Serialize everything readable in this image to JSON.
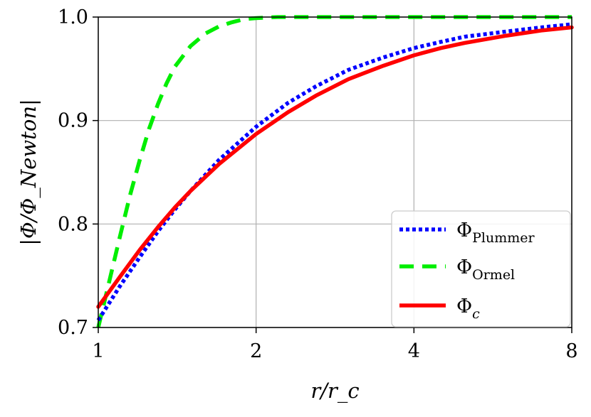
{
  "chart_data": {
    "type": "line",
    "title": "",
    "xlabel": "r/r_c",
    "ylabel": "|Φ/Φ_Newton|",
    "xscale": "log",
    "xlim": [
      1,
      8
    ],
    "ylim": [
      0.7,
      1.0
    ],
    "grid": true,
    "legend_placement": "bottom-right",
    "x_ticks": [
      {
        "value": 1,
        "label": "1"
      },
      {
        "value": 2,
        "label": "2"
      },
      {
        "value": 4,
        "label": "4"
      },
      {
        "value": 8,
        "label": "8"
      }
    ],
    "y_ticks": [
      {
        "value": 0.7,
        "label": "0.7"
      },
      {
        "value": 0.8,
        "label": "0.8"
      },
      {
        "value": 0.9,
        "label": "0.9"
      },
      {
        "value": 1.0,
        "label": "1.0"
      }
    ],
    "series": [
      {
        "name": "Φ_Plummer",
        "name_main": "Φ",
        "name_sub": "Plummer",
        "color": "#0000ff",
        "style": "dotted",
        "x": [
          1.0,
          1.1,
          1.2,
          1.3,
          1.4,
          1.5,
          1.7,
          2.0,
          2.3,
          2.6,
          3.0,
          3.5,
          4.0,
          4.5,
          5.0,
          6.0,
          7.0,
          8.0
        ],
        "y": [
          0.707,
          0.74,
          0.768,
          0.793,
          0.814,
          0.832,
          0.862,
          0.894,
          0.917,
          0.933,
          0.949,
          0.961,
          0.97,
          0.976,
          0.981,
          0.986,
          0.99,
          0.993
        ]
      },
      {
        "name": "Φ_Ormel",
        "name_main": "Φ",
        "name_sub": "Ormel",
        "color": "#00ee00",
        "style": "dashed",
        "x": [
          1.0,
          1.05,
          1.1,
          1.15,
          1.2,
          1.25,
          1.3,
          1.35,
          1.4,
          1.5,
          1.6,
          1.7,
          1.8,
          1.9,
          2.0,
          2.2,
          2.5,
          3.0,
          4.0,
          6.0,
          8.0
        ],
        "y": [
          0.7,
          0.745,
          0.788,
          0.828,
          0.862,
          0.892,
          0.916,
          0.936,
          0.952,
          0.972,
          0.984,
          0.991,
          0.995,
          0.998,
          0.999,
          1.0,
          1.0,
          1.0,
          1.0,
          1.0,
          1.0
        ]
      },
      {
        "name": "Φ_c",
        "name_main": "Φ",
        "name_sub": "c",
        "color": "#ff0000",
        "style": "solid",
        "x": [
          1.0,
          1.1,
          1.2,
          1.3,
          1.4,
          1.5,
          1.7,
          2.0,
          2.3,
          2.6,
          3.0,
          3.5,
          4.0,
          4.5,
          5.0,
          6.0,
          7.0,
          8.0
        ],
        "y": [
          0.72,
          0.749,
          0.775,
          0.797,
          0.816,
          0.832,
          0.858,
          0.887,
          0.908,
          0.924,
          0.94,
          0.953,
          0.963,
          0.97,
          0.975,
          0.982,
          0.987,
          0.99
        ]
      }
    ]
  }
}
